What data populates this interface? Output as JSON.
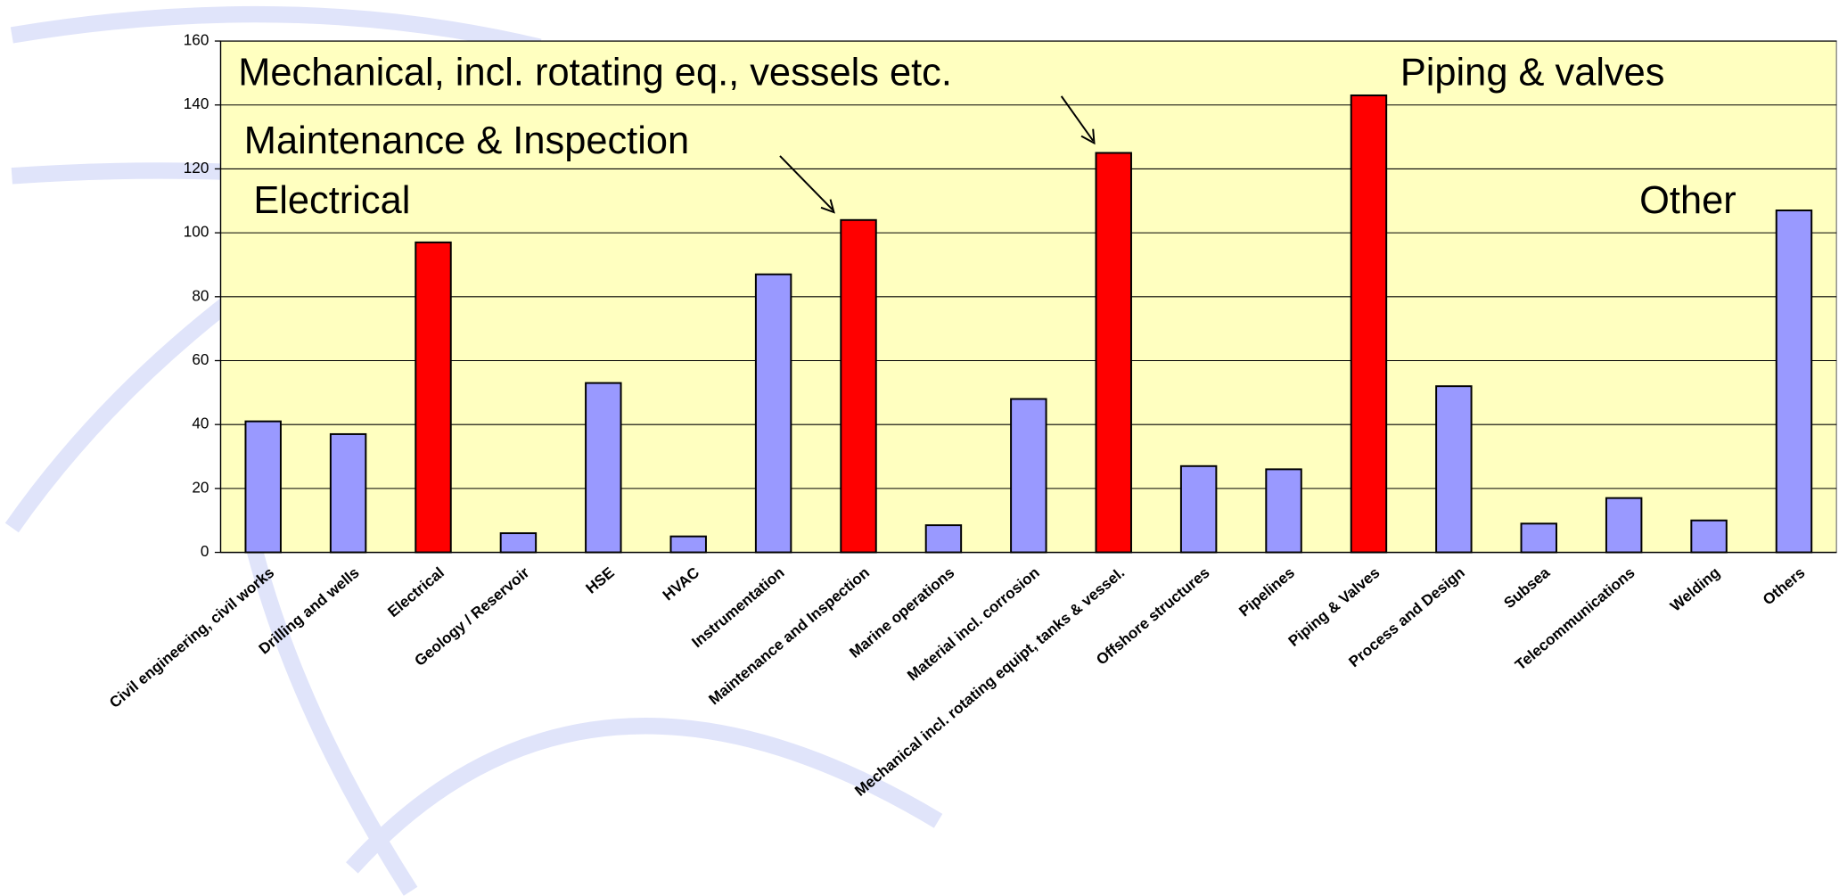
{
  "chart_data": {
    "type": "bar",
    "categories": [
      "Civil engineering, civil works",
      "Drilling and wells",
      "Electrical",
      "Geology / Reservoir",
      "HSE",
      "HVAC",
      "Instrumentation",
      "Maintenance and Inspection",
      "Marine operations",
      "Material incl. corrosion",
      "Mechanical incl. rotating equipt, tanks & vessel.",
      "Offshore structures",
      "Pipelines",
      "Piping & Valves",
      "Process and Design",
      "Subsea",
      "Telecommunications",
      "Welding",
      "Others"
    ],
    "values": [
      41,
      37,
      97,
      6,
      53,
      5,
      87,
      104,
      8.5,
      48,
      125,
      27,
      26,
      143,
      52,
      9,
      17,
      10,
      107
    ],
    "colors": [
      "#9999ff",
      "#9999ff",
      "#ff0000",
      "#9999ff",
      "#9999ff",
      "#9999ff",
      "#9999ff",
      "#ff0000",
      "#9999ff",
      "#9999ff",
      "#ff0000",
      "#9999ff",
      "#9999ff",
      "#ff0000",
      "#9999ff",
      "#9999ff",
      "#9999ff",
      "#9999ff",
      "#9999ff"
    ],
    "ylim": [
      0,
      160
    ],
    "yticks": [
      0,
      20,
      40,
      60,
      80,
      100,
      120,
      140,
      160
    ],
    "grid": true,
    "annotations": [
      "Mechanical, incl. rotating eq., vessels etc.",
      "Maintenance & Inspection",
      "Electrical",
      "Piping & valves",
      "Other"
    ]
  }
}
